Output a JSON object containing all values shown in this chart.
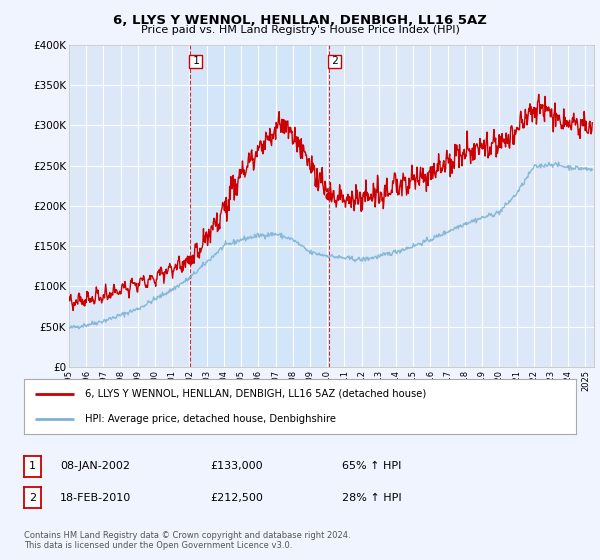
{
  "title": "6, LLYS Y WENNOL, HENLLAN, DENBIGH, LL16 5AZ",
  "subtitle": "Price paid vs. HM Land Registry's House Price Index (HPI)",
  "background_color": "#f0f4ff",
  "plot_bg_color": "#dce8f8",
  "shade_color": "#d0e4f8",
  "grid_color": "#ffffff",
  "red_line_color": "#cc0000",
  "blue_line_color": "#7fb3d3",
  "marker1_date": 2002.05,
  "marker2_date": 2010.13,
  "marker1_value": 133000,
  "marker2_value": 212500,
  "vline1_date": 2002.05,
  "vline2_date": 2010.13,
  "legend_house": "6, LLYS Y WENNOL, HENLLAN, DENBIGH, LL16 5AZ (detached house)",
  "legend_hpi": "HPI: Average price, detached house, Denbighshire",
  "table_row1": [
    "1",
    "08-JAN-2002",
    "£133,000",
    "65% ↑ HPI"
  ],
  "table_row2": [
    "2",
    "18-FEB-2010",
    "£212,500",
    "28% ↑ HPI"
  ],
  "footer": "Contains HM Land Registry data © Crown copyright and database right 2024.\nThis data is licensed under the Open Government Licence v3.0.",
  "ylim_min": 0,
  "ylim_max": 400000,
  "xlim_min": 1995,
  "xlim_max": 2025.5,
  "yticks": [
    0,
    50000,
    100000,
    150000,
    200000,
    250000,
    300000,
    350000,
    400000
  ],
  "ytick_labels": [
    "£0",
    "£50K",
    "£100K",
    "£150K",
    "£200K",
    "£250K",
    "£300K",
    "£350K",
    "£400K"
  ]
}
